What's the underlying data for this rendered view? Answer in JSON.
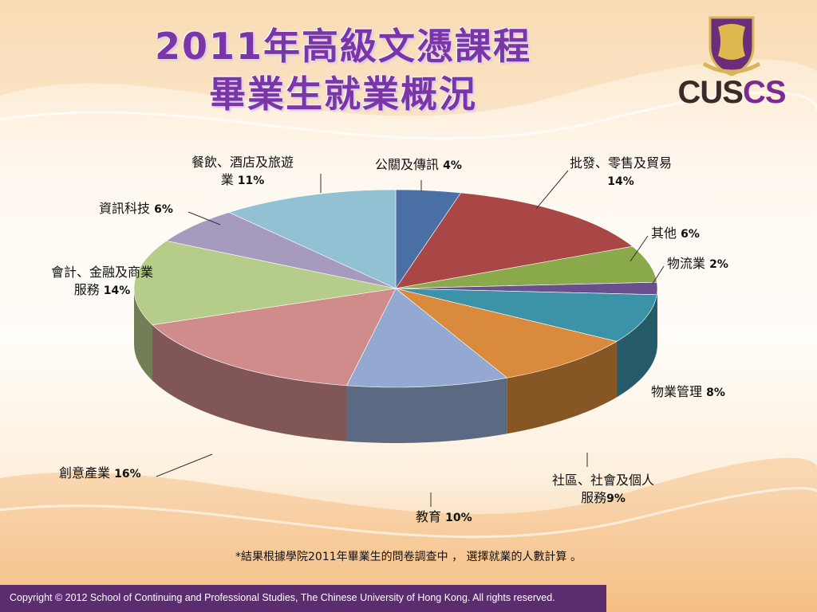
{
  "slide": {
    "title_line1": "2011年高級文憑課程",
    "title_line2": "畢業生就業概況",
    "logo_text_a": "CUS",
    "logo_text_b": "CS",
    "footnote": "*結果根據學院2011年畢業生的問卷調查中 ， 選擇就業的人數計算 。",
    "footer": "Copyright © 2012 School of Continuing and Professional Studies, The Chinese University of Hong Kong.  All rights reserved.",
    "accent_color": "#7a35a8",
    "footer_color": "#5b2d6f"
  },
  "chart_data": {
    "type": "pie",
    "style": "3d exploded-none, clockwise from top",
    "title": "",
    "series": [
      {
        "category": "公關及傳訊",
        "value": 4,
        "label_text": "公關及傳訊",
        "pct_text": "4%",
        "color": "#4a6fa5"
      },
      {
        "category": "批發、零售及貿易",
        "value": 14,
        "label_line1": "批發、零售及貿易",
        "pct_text": "14%",
        "color": "#a94646"
      },
      {
        "category": "其他",
        "value": 6,
        "label_text": "其他",
        "pct_text": "6%",
        "color": "#8aa94b"
      },
      {
        "category": "物流業",
        "value": 2,
        "label_text": "物流業",
        "pct_text": "2%",
        "color": "#6a4f8e"
      },
      {
        "category": "物業管理",
        "value": 8,
        "label_text": "物業管理",
        "pct_text": "8%",
        "color": "#3c93a8"
      },
      {
        "category": "社區、社會及個人服務",
        "value": 9,
        "label_line1": "社區、社會及個人",
        "label_line2": "服務",
        "pct_text": "9%",
        "color": "#d98a3c"
      },
      {
        "category": "教育",
        "value": 10,
        "label_text": "教育",
        "pct_text": "10%",
        "color": "#93a9d1"
      },
      {
        "category": "創意產業",
        "value": 16,
        "label_text": "創意產業",
        "pct_text": "16%",
        "color": "#cf8c8b"
      },
      {
        "category": "會計、金融及商業服務",
        "value": 14,
        "label_line1": "會計、金融及商業",
        "label_line2": "服務",
        "pct_text": "14%",
        "color": "#b6cc8a"
      },
      {
        "category": "資訊科技",
        "value": 6,
        "label_text": "資訊科技",
        "pct_text": "6%",
        "color": "#a79abf"
      },
      {
        "category": "餐飲、酒店及旅遊業",
        "value": 11,
        "label_line1": "餐飲、酒店及旅遊",
        "label_line2": "業",
        "pct_text": "11%",
        "color": "#91c1d3"
      }
    ]
  }
}
